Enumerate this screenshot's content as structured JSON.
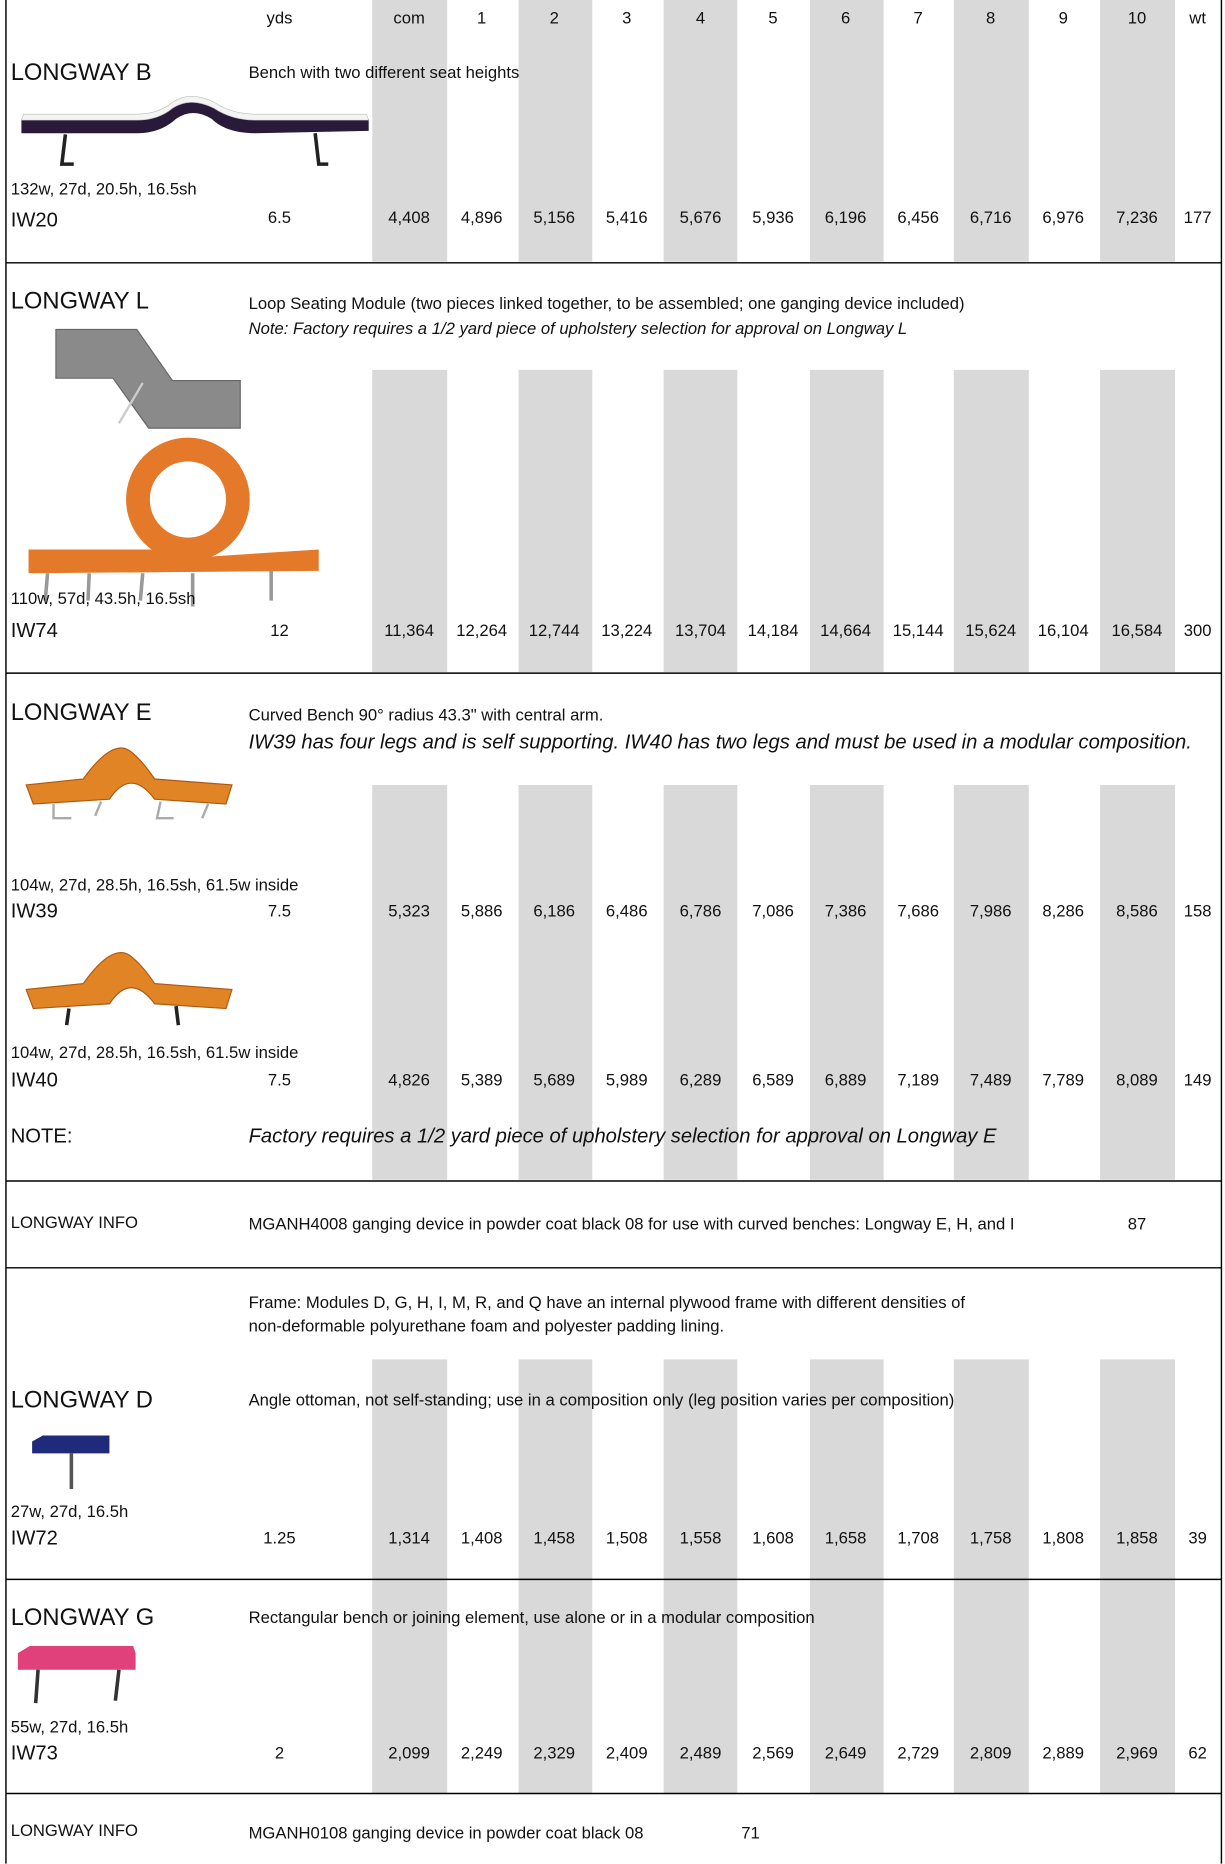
{
  "header": {
    "columns": [
      "yds",
      "com",
      "1",
      "2",
      "3",
      "4",
      "5",
      "6",
      "7",
      "8",
      "9",
      "10",
      "wt"
    ]
  },
  "sections": [
    {
      "title": "LONGWAY B",
      "description": [
        "Bench with two different seat heights"
      ],
      "items": [
        {
          "dimensions": "132w, 27d, 20.5h, 16.5sh",
          "code": "IW20",
          "values": [
            "6.5",
            "4,408",
            "4,896",
            "5,156",
            "5,416",
            "5,676",
            "5,936",
            "6,196",
            "6,456",
            "6,716",
            "6,976",
            "7,236",
            "177"
          ]
        }
      ]
    },
    {
      "title": "LONGWAY L",
      "description": [
        "Loop Seating Module (two pieces linked together, to be assembled; one ganging device included)",
        "Note:  Factory requires a 1/2 yard piece of upholstery selection for approval on Longway L"
      ],
      "items": [
        {
          "dimensions": "110w, 57d, 43.5h, 16.5sh",
          "code": "IW74",
          "values": [
            "12",
            "11,364",
            "12,264",
            "12,744",
            "13,224",
            "13,704",
            "14,184",
            "14,664",
            "15,144",
            "15,624",
            "16,104",
            "16,584",
            "300"
          ]
        }
      ]
    },
    {
      "title": "LONGWAY E",
      "description": [
        "Curved Bench 90° radius 43.3\" with central arm.",
        "IW39 has four legs and is self supporting.  IW40 has two legs and must be used in a modular composition."
      ],
      "items": [
        {
          "dimensions": "104w, 27d, 28.5h, 16.5sh, 61.5w inside",
          "code": "IW39",
          "values": [
            "7.5",
            "5,323",
            "5,886",
            "6,186",
            "6,486",
            "6,786",
            "7,086",
            "7,386",
            "7,686",
            "7,986",
            "8,286",
            "8,586",
            "158"
          ]
        },
        {
          "dimensions": "104w, 27d, 28.5h, 16.5sh, 61.5w inside",
          "code": "IW40",
          "values": [
            "7.5",
            "4,826",
            "5,389",
            "5,689",
            "5,989",
            "6,289",
            "6,589",
            "6,889",
            "7,189",
            "7,489",
            "7,789",
            "8,089",
            "149"
          ]
        }
      ],
      "note": {
        "label": "NOTE:",
        "text": "Factory requires a 1/2 yard piece of upholstery selection for approval on Longway E"
      }
    },
    {
      "title": "LONGWAY INFO",
      "description": [
        "MGANH4008 ganging device in powder coat black 08 for use with curved benches:  Longway E, H, and  I"
      ],
      "weight": "87"
    },
    {
      "frame": [
        "Frame:  Modules D, G, H, I, M, R, and Q have an internal plywood frame with different densities of",
        "non-deformable polyurethane foam and polyester padding lining."
      ],
      "title": "LONGWAY D",
      "description": [
        "Angle ottoman, not self-standing; use in a composition only (leg position varies per composition)"
      ],
      "items": [
        {
          "dimensions": "27w, 27d, 16.5h",
          "code": "IW72",
          "values": [
            "1.25",
            "1,314",
            "1,408",
            "1,458",
            "1,508",
            "1,558",
            "1,608",
            "1,658",
            "1,708",
            "1,758",
            "1,808",
            "1,858",
            "39"
          ]
        }
      ]
    },
    {
      "title": "LONGWAY G",
      "description": [
        "Rectangular bench or joining element, use alone or in a modular composition"
      ],
      "items": [
        {
          "dimensions": "55w, 27d, 16.5h",
          "code": "IW73",
          "values": [
            "2",
            "2,099",
            "2,249",
            "2,329",
            "2,409",
            "2,489",
            "2,569",
            "2,649",
            "2,729",
            "2,809",
            "2,889",
            "2,969",
            "62"
          ]
        }
      ]
    },
    {
      "title": "LONGWAY INFO",
      "description": [
        "MGANH0108 ganging device in powder coat black 08"
      ],
      "weight": "71"
    }
  ]
}
